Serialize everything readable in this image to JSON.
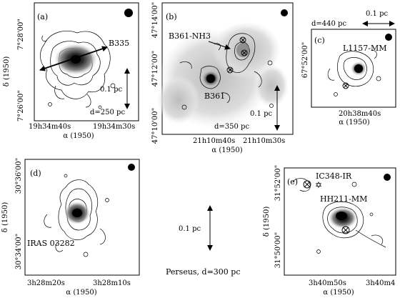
{
  "panels": [
    {
      "id": "a",
      "letter": "(a)",
      "source": "B335",
      "scale": "0.1 pc",
      "distance": "d=250 pc",
      "xticks": [
        "19h34m40s",
        "19h34m30s"
      ],
      "yticks": [
        "7°28'00\"",
        "7°26'00\""
      ],
      "xlabel": "α (1950)",
      "ylabel": "δ (1950)"
    },
    {
      "id": "b",
      "letter": "(b)",
      "source": "B361",
      "annotation": "B361-NH3",
      "scale": "0.1 pc",
      "distance": "d=350 pc",
      "xticks": [
        "21h10m40s",
        "21h10m30s"
      ],
      "yticks": [
        "47°14'00\"",
        "47°12'00\"",
        "47°10'00\""
      ],
      "xlabel": "α (1950)",
      "ylabel": "δ (1950)"
    },
    {
      "id": "c",
      "letter": "(c)",
      "source": "L1157-MM",
      "scale": "0.1 pc",
      "distance": "d=440 pc",
      "xticks": [
        "20h38m40s"
      ],
      "yticks": [
        "67°52'00\""
      ],
      "xlabel": "α (1950)",
      "ylabel": "δ (1950)"
    },
    {
      "id": "d",
      "letter": "(d)",
      "source": "IRAS 03282",
      "xticks": [
        "3h28m20s",
        "3h28m10s"
      ],
      "yticks": [
        "30°36'00\"",
        "30°34'00\""
      ],
      "xlabel": "α (1950)",
      "ylabel": "δ (1950)"
    },
    {
      "id": "e",
      "letter": "(e)",
      "source": "HH211-MM",
      "annotation": "IC348-IR",
      "xticks": [
        "3h40m50s",
        "3h40m4"
      ],
      "yticks": [
        "31°52'00\"",
        "31°50'00\""
      ],
      "xlabel": "α (1950)",
      "ylabel": "δ (1950)"
    }
  ],
  "perseus": {
    "scale": "0.1 pc",
    "caption": "Perseus, d=300 pc"
  }
}
